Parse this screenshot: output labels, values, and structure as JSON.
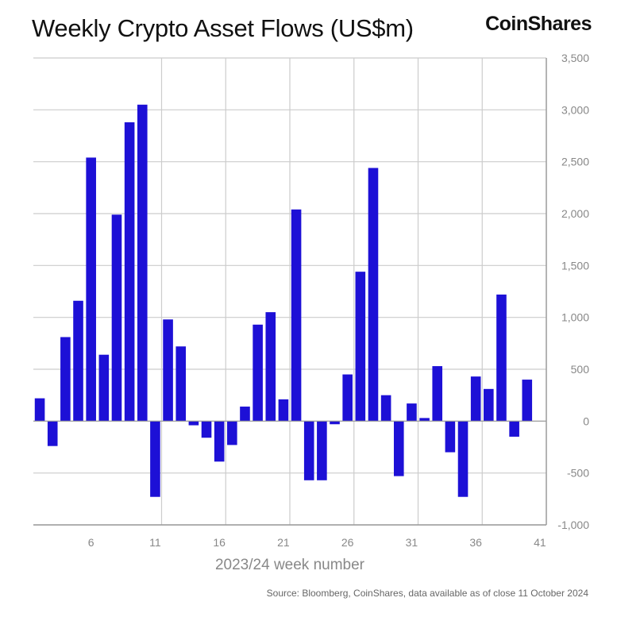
{
  "header": {
    "title": "Weekly Crypto Asset Flows (US$m)",
    "brand": "CoinShares"
  },
  "footer": {
    "source": "Source: Bloomberg, CoinShares, data available as of close 11 October 2024"
  },
  "colors": {
    "bar": "#1d10d6",
    "grid": "#cccccc",
    "axis": "#999999",
    "tick_text": "#888888"
  },
  "chart_data": {
    "type": "bar",
    "title": "Weekly Crypto Asset Flows (US$m)",
    "xlabel": "2023/24 week number",
    "ylabel": "",
    "ylim": [
      -1000,
      3500
    ],
    "yticks": [
      -1000,
      -500,
      0,
      500,
      1000,
      1500,
      2000,
      2500,
      3000,
      3500
    ],
    "ytick_labels": [
      "-1,000",
      "-500",
      "0",
      "500",
      "1,000",
      "1,500",
      "2,000",
      "2,500",
      "3,000",
      "3,500"
    ],
    "x_tick_labels": [
      "6",
      "11",
      "16",
      "21",
      "26",
      "31",
      "36",
      "41"
    ],
    "categories": [
      "2",
      "3",
      "4",
      "5",
      "6",
      "7",
      "8",
      "9",
      "10",
      "11",
      "12",
      "13",
      "14",
      "15",
      "16",
      "17",
      "18",
      "19",
      "20",
      "21",
      "22",
      "23",
      "24",
      "25",
      "26",
      "27",
      "28",
      "29",
      "30",
      "31",
      "32",
      "33",
      "34",
      "35",
      "36",
      "37",
      "38",
      "39",
      "40",
      "41"
    ],
    "values": [
      220,
      -240,
      810,
      1160,
      2540,
      640,
      1990,
      2880,
      3050,
      -730,
      980,
      720,
      -40,
      -160,
      -390,
      -230,
      140,
      930,
      1050,
      210,
      2040,
      -570,
      -570,
      -30,
      450,
      1440,
      2440,
      250,
      -530,
      170,
      30,
      530,
      -300,
      -730,
      430,
      310,
      1220,
      -150,
      400,
      0
    ],
    "grid": true
  }
}
